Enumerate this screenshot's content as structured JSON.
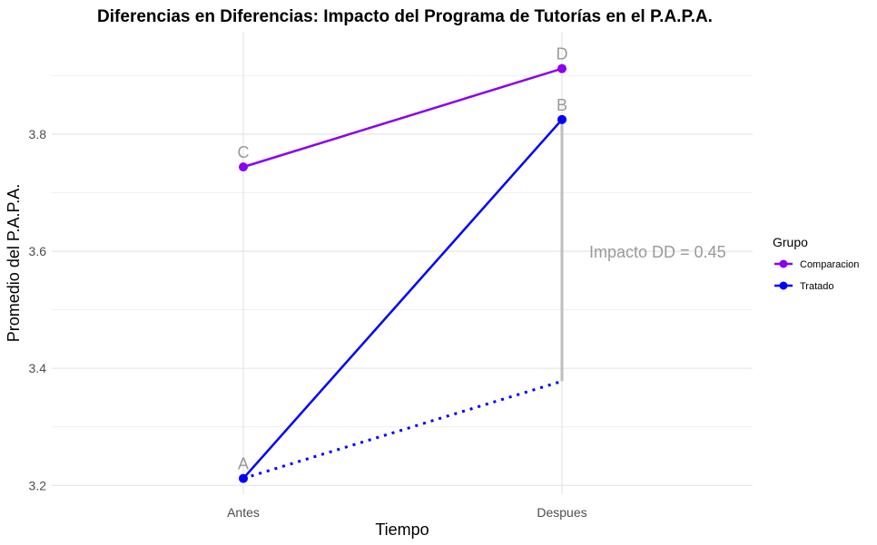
{
  "chart_data": {
    "type": "line",
    "title": "Diferencias en Diferencias: Impacto del Programa de Tutorías en el P.A.P.A.",
    "xlabel": "Tiempo",
    "ylabel": "Promedio del P.A.P.A.",
    "categories": [
      "Antes",
      "Despues"
    ],
    "ylim": [
      3.185,
      3.975
    ],
    "yticks": [
      3.2,
      3.4,
      3.6,
      3.8
    ],
    "yminor": [
      3.3,
      3.5,
      3.7,
      3.9
    ],
    "grid": true,
    "series": [
      {
        "name": "Comparacion",
        "color": "#8B00EE",
        "values": [
          3.744,
          3.912
        ],
        "point_labels": [
          "C",
          "D"
        ]
      },
      {
        "name": "Tratado",
        "color": "#0000FF",
        "values": [
          3.212,
          3.825
        ],
        "point_labels": [
          "A",
          "B"
        ]
      }
    ],
    "counterfactual": {
      "color": "#0000FF",
      "style": "dotted",
      "values": [
        3.212,
        3.378
      ]
    },
    "impact_segment": {
      "color": "#BEBEBE",
      "x": "Despues",
      "from": 3.378,
      "to": 3.825
    },
    "annotation": {
      "text": "Impacto DD = 0.45",
      "x": 2.3,
      "y": 3.6,
      "color": "#9A9A9A"
    },
    "legend": {
      "title": "Grupo",
      "placement": "right",
      "entries": [
        "Comparacion",
        "Tratado"
      ]
    }
  }
}
